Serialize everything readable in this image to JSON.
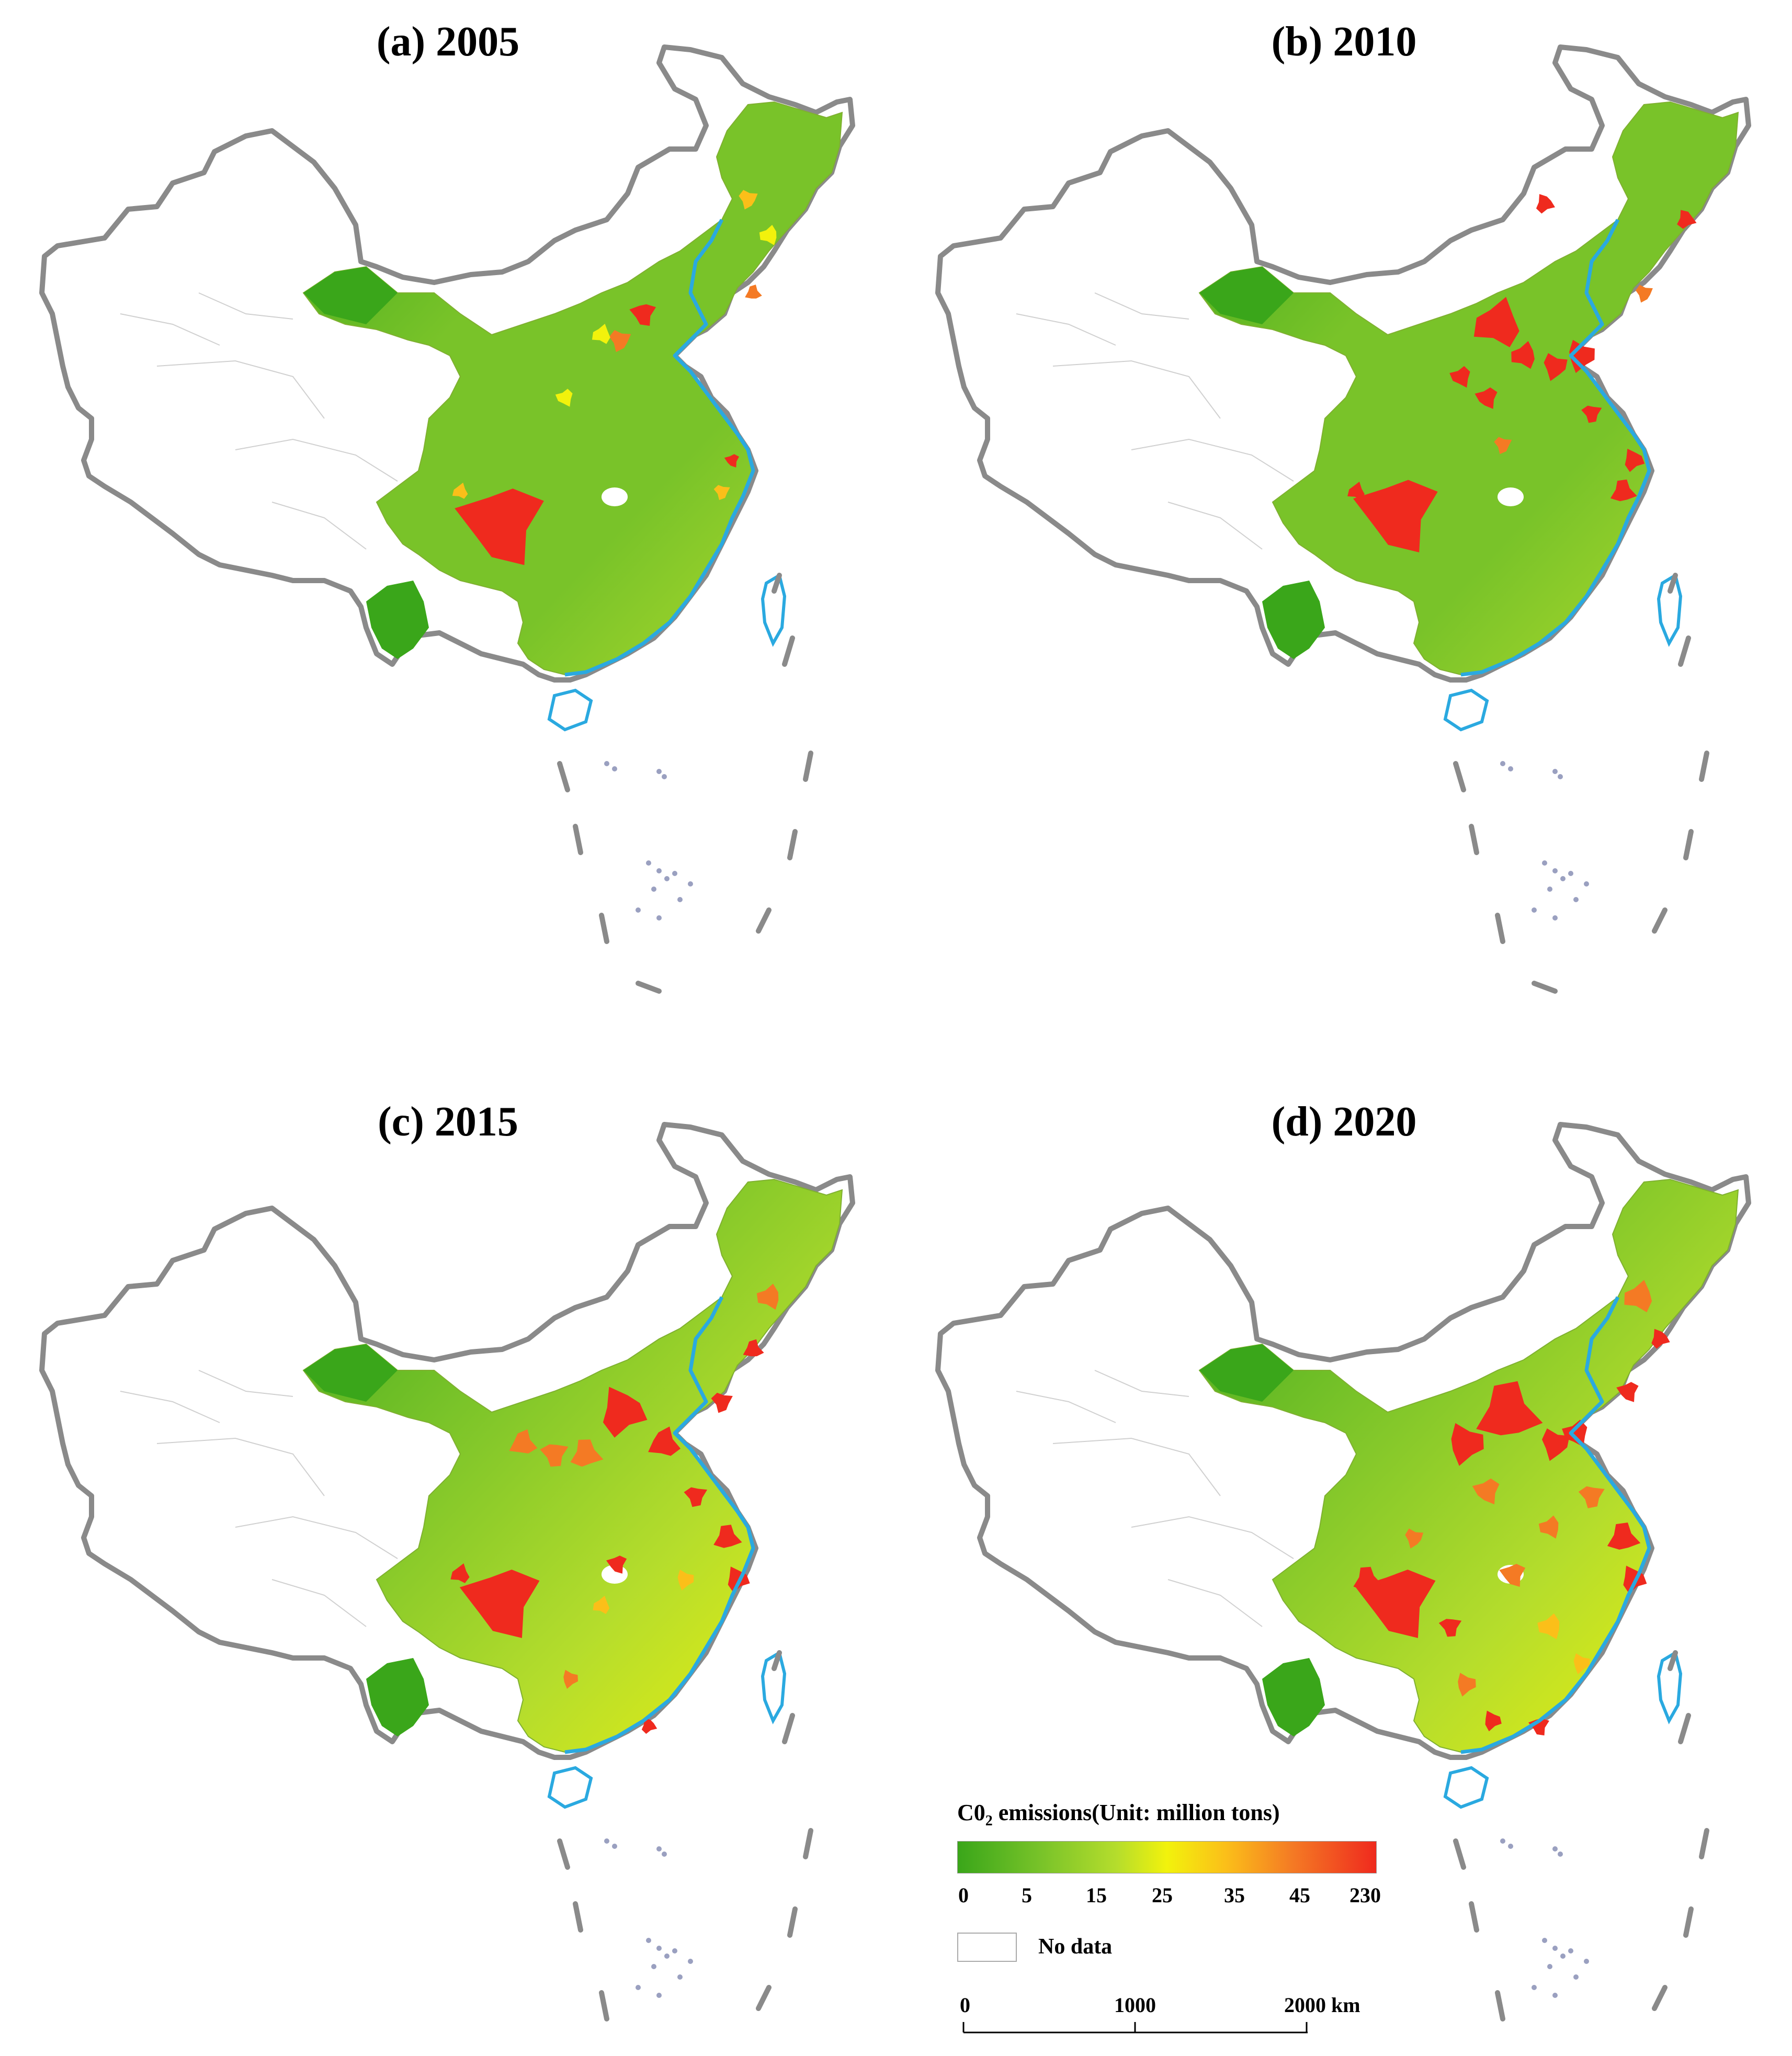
{
  "panels": [
    {
      "title": "(a) 2005",
      "year": 2005
    },
    {
      "title": "(b) 2010",
      "year": 2010
    },
    {
      "title": "(c) 2015",
      "year": 2015
    },
    {
      "title": "(d) 2020",
      "year": 2020
    }
  ],
  "legend": {
    "title_prefix": "C0",
    "title_sub": "2",
    "title_suffix": " emissions(Unit: million tons)",
    "ticks": [
      "0",
      "5",
      "15",
      "25",
      "35",
      "45",
      "230"
    ],
    "colors": [
      "#3aa61a",
      "#79c329",
      "#b5dd2c",
      "#f2f20c",
      "#fbbf19",
      "#f47a24",
      "#ef2a1e"
    ],
    "no_data_label": "No data",
    "no_data_color": "#ffffff"
  },
  "scale_bar": {
    "labels": [
      "0",
      "1000",
      "2000 km"
    ]
  },
  "colors": {
    "border": "#8a8a8a",
    "coast": "#2aa9e0",
    "internal": "#d0d0d0"
  }
}
